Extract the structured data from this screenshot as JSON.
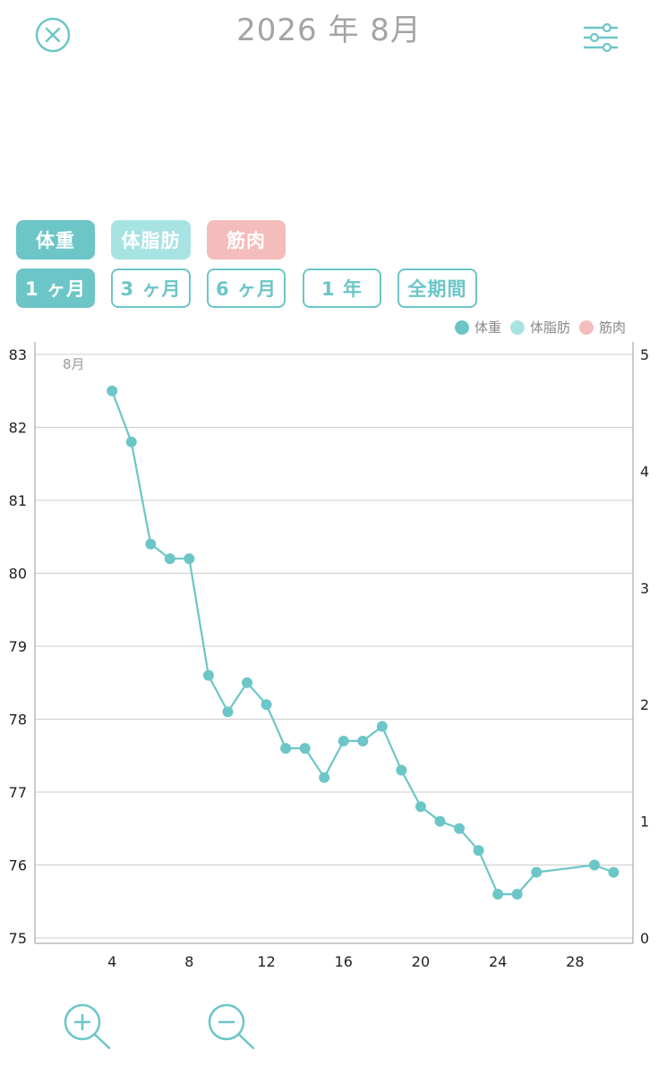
{
  "header": {
    "title": "2026 年 8月"
  },
  "icons": {
    "close": "close-circle-icon",
    "settings": "sliders-icon",
    "zoom_in": "zoom-in-icon",
    "zoom_out": "zoom-out-icon"
  },
  "metric_tabs": [
    {
      "label": "体重",
      "color": "#6cc6c7",
      "active": true
    },
    {
      "label": "体脂肪",
      "color": "#a8e3e3",
      "active": false
    },
    {
      "label": "筋肉",
      "color": "#f4bcbb",
      "active": false
    }
  ],
  "period_tabs": [
    {
      "label": "1 ヶ月",
      "active": true
    },
    {
      "label": "3 ヶ月",
      "active": false
    },
    {
      "label": "6 ヶ月",
      "active": false
    },
    {
      "label": "1 年",
      "active": false
    },
    {
      "label": "全期間",
      "active": false
    }
  ],
  "colors": {
    "accent": "#6cc6c7",
    "fat": "#a8e3e3",
    "muscle": "#f4bcbb",
    "grid": "#cccccc"
  },
  "chart_data": {
    "type": "line",
    "month_label": "8月",
    "legend": [
      {
        "name": "体重",
        "color": "#6cc6c7"
      },
      {
        "name": "体脂肪",
        "color": "#a8e3e3"
      },
      {
        "name": "筋肉",
        "color": "#f4bcbb"
      }
    ],
    "legend_position": "top-right",
    "x_ticks": [
      4,
      8,
      12,
      16,
      20,
      24,
      28
    ],
    "xlim": [
      0,
      31
    ],
    "y_left_ticks": [
      75,
      76,
      77,
      78,
      79,
      80,
      81,
      82,
      83
    ],
    "ylim_left": [
      75,
      83
    ],
    "y_right_ticks": [
      0,
      1,
      2,
      3,
      4,
      5
    ],
    "ylim_right": [
      0,
      5
    ],
    "grid": true,
    "series": [
      {
        "name": "体重",
        "color": "#6cc6c7",
        "points": [
          [
            4,
            82.5
          ],
          [
            5,
            81.8
          ],
          [
            6,
            80.4
          ],
          [
            7,
            80.2
          ],
          [
            8,
            80.2
          ],
          [
            9,
            78.6
          ],
          [
            10,
            78.1
          ],
          [
            11,
            78.5
          ],
          [
            12,
            78.2
          ],
          [
            13,
            77.6
          ],
          [
            14,
            77.6
          ],
          [
            15,
            77.2
          ],
          [
            16,
            77.7
          ],
          [
            17,
            77.7
          ],
          [
            18,
            77.9
          ],
          [
            19,
            77.3
          ],
          [
            20,
            76.8
          ],
          [
            21,
            76.6
          ],
          [
            22,
            76.5
          ],
          [
            23,
            76.2
          ],
          [
            24,
            75.6
          ],
          [
            25,
            75.6
          ],
          [
            26,
            75.9
          ],
          [
            29,
            76.0
          ],
          [
            30,
            75.9
          ]
        ]
      }
    ]
  }
}
